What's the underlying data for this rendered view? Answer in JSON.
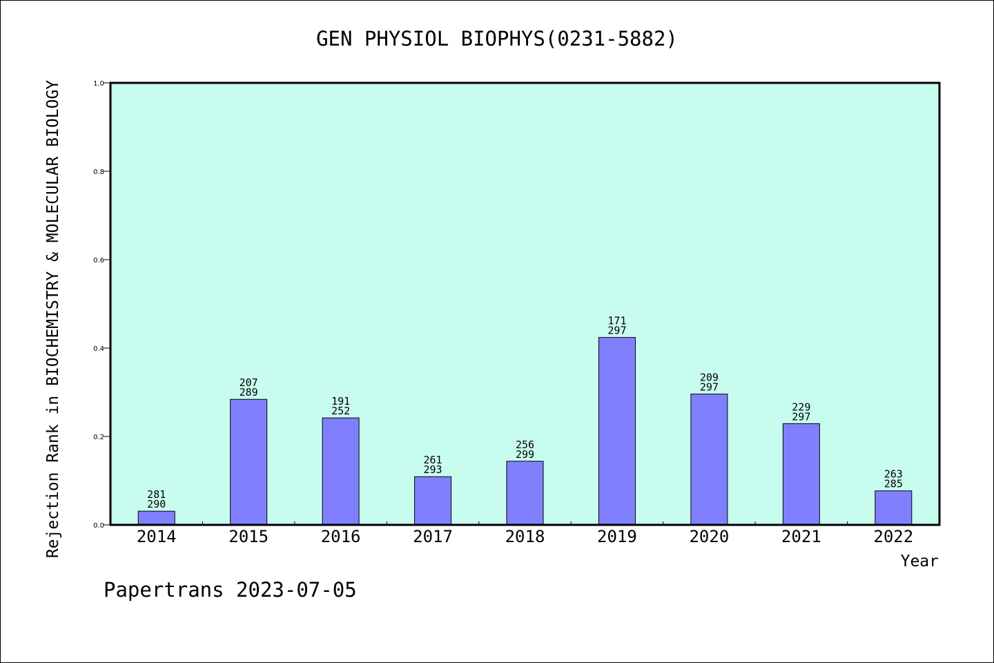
{
  "chart_data": {
    "type": "bar",
    "title": "GEN PHYSIOL BIOPHYS(0231-5882)",
    "ylabel": "Rejection Rank in BIOCHEMISTRY & MOLECULAR BIOLOGY",
    "xlabel": "Year",
    "ylim": [
      0.0,
      1.0
    ],
    "yticks": [
      "0.0",
      "0.2",
      "0.4",
      "0.6",
      "0.8",
      "1.0"
    ],
    "categories": [
      "2014",
      "2015",
      "2016",
      "2017",
      "2018",
      "2019",
      "2020",
      "2021",
      "2022"
    ],
    "values": [
      0.031,
      0.284,
      0.242,
      0.109,
      0.144,
      0.424,
      0.296,
      0.229,
      0.077
    ],
    "label_top": [
      "281",
      "207",
      "191",
      "261",
      "256",
      "171",
      "209",
      "229",
      "263"
    ],
    "label_bottom": [
      "290",
      "289",
      "252",
      "293",
      "299",
      "297",
      "297",
      "297",
      "285"
    ],
    "grid": false,
    "plot_background": "#c8fcee",
    "bar_color": "#8080ff"
  },
  "footer": "Papertrans 2023-07-05"
}
